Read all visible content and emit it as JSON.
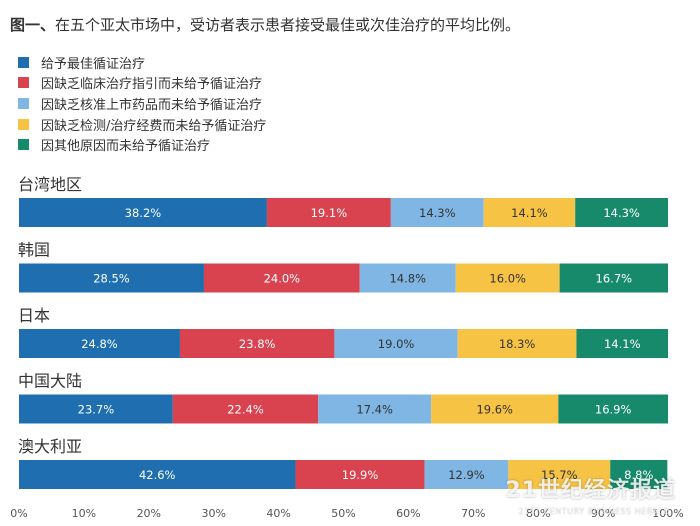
{
  "chart_data": {
    "type": "bar",
    "orientation": "horizontal",
    "stacked": true,
    "title": {
      "label": "图一、",
      "text": "在五个亚太市场中，受访者表示患者接受最佳或次佳治疗的平均比例。"
    },
    "categories": [
      "台湾地区",
      "韩国",
      "日本",
      "中国大陆",
      "澳大利亚"
    ],
    "series": [
      {
        "name": "给予最佳循证治疗",
        "color": "#1f6fb0",
        "values": [
          38.2,
          28.5,
          24.8,
          23.7,
          42.6
        ]
      },
      {
        "name": "因缺乏临床治疗指引而未给予循证治疗",
        "color": "#d8434f",
        "values": [
          19.1,
          24.0,
          23.8,
          22.4,
          19.9
        ]
      },
      {
        "name": "因缺乏核准上市药品而未给予循证治疗",
        "color": "#7fb6e3",
        "values": [
          14.3,
          14.8,
          19.0,
          17.4,
          12.9
        ]
      },
      {
        "name": "因缺乏检测/治疗经费而未给予循证治疗",
        "color": "#f7c344",
        "values": [
          14.1,
          16.0,
          18.3,
          19.6,
          15.7
        ]
      },
      {
        "name": "因其他原因而未给予循证治疗",
        "color": "#178a6b",
        "values": [
          14.3,
          16.7,
          14.1,
          16.9,
          8.8
        ]
      }
    ],
    "xlim": [
      0,
      100
    ],
    "x_ticks": [
      "0%",
      "10%",
      "20%",
      "30%",
      "40%",
      "50%",
      "60%",
      "70%",
      "80%",
      "90%",
      "100%"
    ],
    "legend_position": "top-left",
    "grid": false
  },
  "watermark": {
    "main": "21世纪经济报道",
    "sub": "21ST CENTURY BUSINESS HERALD"
  }
}
